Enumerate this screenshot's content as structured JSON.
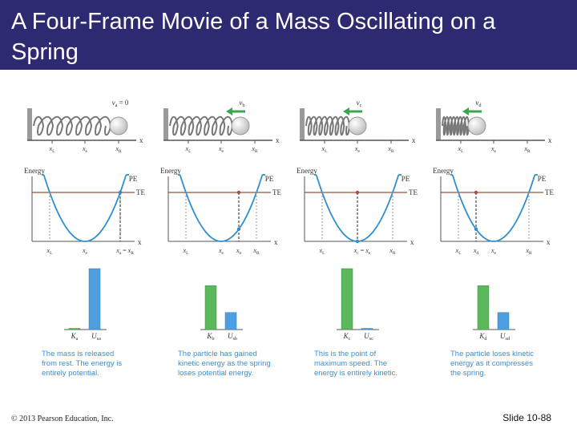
{
  "slide": {
    "title": "A Four-Frame Movie of a Mass Oscillating on a Spring",
    "copyright": "© 2013 Pearson Education, Inc.",
    "slide_number": "Slide 10-88"
  },
  "colors": {
    "header_bg": "#2e2a72",
    "curve": "#2f8fce",
    "te_line": "#a0523a",
    "ke_bar": "#5cb85c",
    "pe_bar": "#4d9fe0",
    "caption": "#3a8fd6",
    "arrow": "#3aa84a"
  },
  "frames": [
    {
      "velocity_label": "v_a = 0",
      "has_arrow": false,
      "spring_position": "xR",
      "spring_x_labels": [
        "x_L",
        "x_e",
        "x_R"
      ],
      "energy_axis_label": "Energy",
      "pe_label": "PE",
      "te_label": "TE",
      "axis_x_label": "x",
      "energy_x_labels": [
        "x_L",
        "x_e",
        "x_a = x_R"
      ],
      "bar_labels": [
        "K_a",
        "U_sa"
      ],
      "ke_fraction": 0.0,
      "pe_fraction": 1.0,
      "caption": [
        "The mass is released",
        "from rest. The energy is",
        "entirely potential."
      ]
    },
    {
      "velocity_label": "v_b",
      "has_arrow": true,
      "spring_position": "between",
      "spring_x_labels": [
        "x_L",
        "x_e",
        "x_R"
      ],
      "energy_axis_label": "Energy",
      "pe_label": "PE",
      "te_label": "TE",
      "axis_x_label": "x",
      "energy_x_labels": [
        "x_L",
        "x_e",
        "x_b",
        "x_R"
      ],
      "bar_labels": [
        "K_b",
        "U_sb"
      ],
      "ke_fraction": 0.72,
      "pe_fraction": 0.28,
      "caption": [
        "The particle has gained",
        "kinetic energy as the spring",
        "loses potential energy."
      ]
    },
    {
      "velocity_label": "v_c",
      "has_arrow": true,
      "spring_position": "xe",
      "spring_x_labels": [
        "x_L",
        "x_e",
        "x_R"
      ],
      "energy_axis_label": "Energy",
      "pe_label": "PE",
      "te_label": "TE",
      "axis_x_label": "x",
      "energy_x_labels": [
        "x_L",
        "x_c = x_e",
        "x_R"
      ],
      "bar_labels": [
        "K_c",
        "U_sc"
      ],
      "ke_fraction": 1.0,
      "pe_fraction": 0.0,
      "caption": [
        "This is the point of",
        "maximum speed. The",
        "energy is entirely kinetic."
      ]
    },
    {
      "velocity_label": "v_d",
      "has_arrow": true,
      "spring_position": "compressed",
      "spring_x_labels": [
        "x_L",
        "x_e",
        "x_R"
      ],
      "energy_axis_label": "Energy",
      "pe_label": "PE",
      "te_label": "TE",
      "axis_x_label": "x",
      "energy_x_labels": [
        "x_L",
        "x_d",
        "x_e",
        "x_R"
      ],
      "bar_labels": [
        "K_d",
        "U_sd"
      ],
      "ke_fraction": 0.72,
      "pe_fraction": 0.28,
      "caption": [
        "The particle loses kinetic",
        "energy as it compresses",
        "the spring."
      ]
    }
  ]
}
